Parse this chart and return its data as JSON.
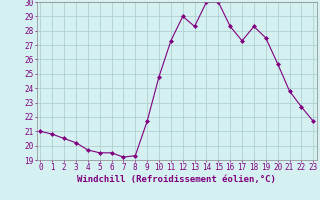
{
  "x": [
    0,
    1,
    2,
    3,
    4,
    5,
    6,
    7,
    8,
    9,
    10,
    11,
    12,
    13,
    14,
    15,
    16,
    17,
    18,
    19,
    20,
    21,
    22,
    23
  ],
  "y": [
    21.0,
    20.8,
    20.5,
    20.2,
    19.7,
    19.5,
    19.5,
    19.2,
    19.3,
    21.7,
    24.8,
    27.3,
    29.0,
    28.3,
    30.0,
    30.0,
    28.3,
    27.3,
    28.3,
    27.5,
    25.7,
    23.8,
    22.7,
    21.7
  ],
  "line_color": "#800080",
  "marker": "D",
  "marker_size": 2,
  "bg_color": "#d4f0f0",
  "grid_color": "#aacccc",
  "xlabel": "Windchill (Refroidissement éolien,°C)",
  "xlabel_color": "#800080",
  "ylim": [
    19,
    30
  ],
  "yticks": [
    19,
    20,
    21,
    22,
    23,
    24,
    25,
    26,
    27,
    28,
    29,
    30
  ],
  "xticks": [
    0,
    1,
    2,
    3,
    4,
    5,
    6,
    7,
    8,
    9,
    10,
    11,
    12,
    13,
    14,
    15,
    16,
    17,
    18,
    19,
    20,
    21,
    22,
    23
  ],
  "tick_color": "#800080",
  "tick_fontsize": 5.5,
  "xlabel_fontsize": 6.5,
  "line_width": 0.8
}
